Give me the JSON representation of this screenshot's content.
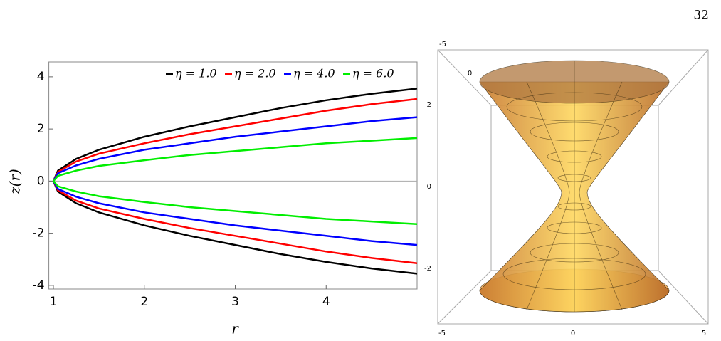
{
  "page_number": "32",
  "chart_data": [
    {
      "type": "line",
      "x_label": "r",
      "y_label": "z(r)",
      "x": [
        1,
        1.05,
        1.25,
        1.5,
        2,
        2.5,
        3,
        3.5,
        4,
        4.5,
        5
      ],
      "xlim": [
        0.95,
        5
      ],
      "xticks": [
        1,
        2,
        3,
        4
      ],
      "ylim": [
        -4.14,
        4.57
      ],
      "yticks": [
        -4,
        -2,
        0,
        2,
        4
      ],
      "zero_line": true,
      "legend": "top-right",
      "series": [
        {
          "name": "η = 1.0",
          "color": "#000000",
          "values": [
            0,
            0.4,
            0.85,
            1.2,
            1.7,
            2.1,
            2.45,
            2.8,
            3.1,
            3.35,
            3.55
          ],
          "lower": [
            0,
            -0.4,
            -0.85,
            -1.2,
            -1.7,
            -2.1,
            -2.45,
            -2.8,
            -3.1,
            -3.35,
            -3.55
          ]
        },
        {
          "name": "η = 2.0",
          "color": "#ff0000",
          "values": [
            0,
            0.35,
            0.75,
            1.05,
            1.45,
            1.8,
            2.1,
            2.4,
            2.7,
            2.95,
            3.15
          ],
          "lower": [
            0,
            -0.35,
            -0.75,
            -1.05,
            -1.45,
            -1.8,
            -2.1,
            -2.4,
            -2.7,
            -2.95,
            -3.15
          ]
        },
        {
          "name": "η = 4.0",
          "color": "#0000ff",
          "values": [
            0,
            0.3,
            0.6,
            0.85,
            1.2,
            1.45,
            1.7,
            1.9,
            2.1,
            2.3,
            2.45
          ],
          "lower": [
            0,
            -0.3,
            -0.6,
            -0.85,
            -1.2,
            -1.45,
            -1.7,
            -1.9,
            -2.1,
            -2.3,
            -2.45
          ]
        },
        {
          "name": "η = 6.0",
          "color": "#00ee00",
          "values": [
            0,
            0.2,
            0.4,
            0.58,
            0.8,
            1.0,
            1.15,
            1.3,
            1.45,
            1.55,
            1.65
          ],
          "lower": [
            0,
            -0.2,
            -0.4,
            -0.58,
            -0.8,
            -1.0,
            -1.15,
            -1.3,
            -1.45,
            -1.55,
            -1.65
          ]
        }
      ]
    },
    {
      "type": "surface3d",
      "color": "#f0a040",
      "xticks": [
        -5,
        0,
        5
      ],
      "yticks": [
        -5,
        0
      ],
      "zticks": [
        -2,
        0,
        2
      ]
    }
  ]
}
